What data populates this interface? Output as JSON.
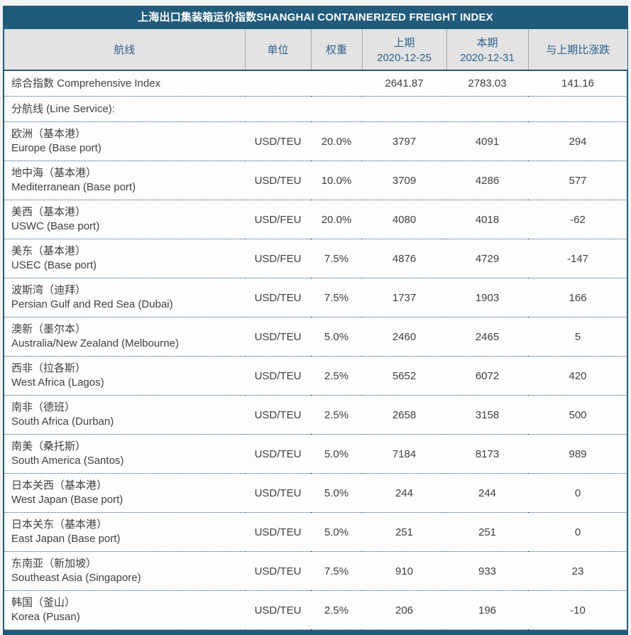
{
  "colors": {
    "accent_teal": "#215b7c",
    "header_bg": "#e3e3e3",
    "header_text": "#2e618d",
    "cell_text": "#404040",
    "dotted_border": "#2a567a",
    "page_bg": "#f1f3f2"
  },
  "chart_data": {
    "type": "table",
    "title": "上海出口集装箱运价指数SHANGHAI CONTAINERIZED FREIGHT INDEX",
    "columns": [
      {
        "label": "航线",
        "sub": ""
      },
      {
        "label": "单位",
        "sub": ""
      },
      {
        "label": "权重",
        "sub": ""
      },
      {
        "label": "上期",
        "sub": "2020-12-25"
      },
      {
        "label": "本期",
        "sub": "2020-12-31"
      },
      {
        "label": "与上期比涨跌",
        "sub": ""
      }
    ],
    "rows": [
      {
        "type": "index",
        "name": "综合指数 Comprehensive Index",
        "unit": "",
        "weight": "",
        "prev": "2641.87",
        "curr": "2783.03",
        "change": "141.16"
      },
      {
        "type": "section",
        "label": "分航线 (Line Service):"
      },
      {
        "type": "route",
        "name_cn": "欧洲（基本港）",
        "name_en": "Europe (Base port)",
        "unit": "USD/TEU",
        "weight": "20.0%",
        "prev": "3797",
        "curr": "4091",
        "change": "294"
      },
      {
        "type": "route",
        "name_cn": "地中海（基本港）",
        "name_en": "Mediterranean (Base port)",
        "unit": "USD/TEU",
        "weight": "10.0%",
        "prev": "3709",
        "curr": "4286",
        "change": "577"
      },
      {
        "type": "route",
        "name_cn": "美西（基本港）",
        "name_en": "USWC (Base port)",
        "unit": "USD/FEU",
        "weight": "20.0%",
        "prev": "4080",
        "curr": "4018",
        "change": "-62"
      },
      {
        "type": "route",
        "name_cn": "美东（基本港）",
        "name_en": "USEC (Base port)",
        "unit": "USD/FEU",
        "weight": "7.5%",
        "prev": "4876",
        "curr": "4729",
        "change": "-147"
      },
      {
        "type": "route",
        "name_cn": "波斯湾（迪拜）",
        "name_en": "Persian Gulf and Red Sea (Dubai)",
        "unit": "USD/TEU",
        "weight": "7.5%",
        "prev": "1737",
        "curr": "1903",
        "change": "166"
      },
      {
        "type": "route",
        "name_cn": "澳新（墨尔本）",
        "name_en": "Australia/New Zealand (Melbourne)",
        "unit": "USD/TEU",
        "weight": "5.0%",
        "prev": "2460",
        "curr": "2465",
        "change": "5"
      },
      {
        "type": "route",
        "name_cn": "西非（拉各斯）",
        "name_en": "West Africa (Lagos)",
        "unit": "USD/TEU",
        "weight": "2.5%",
        "prev": "5652",
        "curr": "6072",
        "change": "420"
      },
      {
        "type": "route",
        "name_cn": "南非（德班）",
        "name_en": "South Africa (Durban)",
        "unit": "USD/TEU",
        "weight": "2.5%",
        "prev": "2658",
        "curr": "3158",
        "change": "500"
      },
      {
        "type": "route",
        "name_cn": "南美（桑托斯）",
        "name_en": "South America (Santos)",
        "unit": "USD/TEU",
        "weight": "5.0%",
        "prev": "7184",
        "curr": "8173",
        "change": "989"
      },
      {
        "type": "route",
        "name_cn": "日本关西（基本港）",
        "name_en": "West Japan (Base port)",
        "unit": "USD/TEU",
        "weight": "5.0%",
        "prev": "244",
        "curr": "244",
        "change": "0"
      },
      {
        "type": "route",
        "name_cn": "日本关东（基本港）",
        "name_en": "East Japan (Base port)",
        "unit": "USD/TEU",
        "weight": "5.0%",
        "prev": "251",
        "curr": "251",
        "change": "0"
      },
      {
        "type": "route",
        "name_cn": "东南亚（新加坡）",
        "name_en": "Southeast Asia (Singapore)",
        "unit": "USD/TEU",
        "weight": "7.5%",
        "prev": "910",
        "curr": "933",
        "change": "23"
      },
      {
        "type": "route",
        "name_cn": "韩国（釜山）",
        "name_en": "Korea (Pusan)",
        "unit": "USD/TEU",
        "weight": "2.5%",
        "prev": "206",
        "curr": "196",
        "change": "-10"
      }
    ]
  }
}
